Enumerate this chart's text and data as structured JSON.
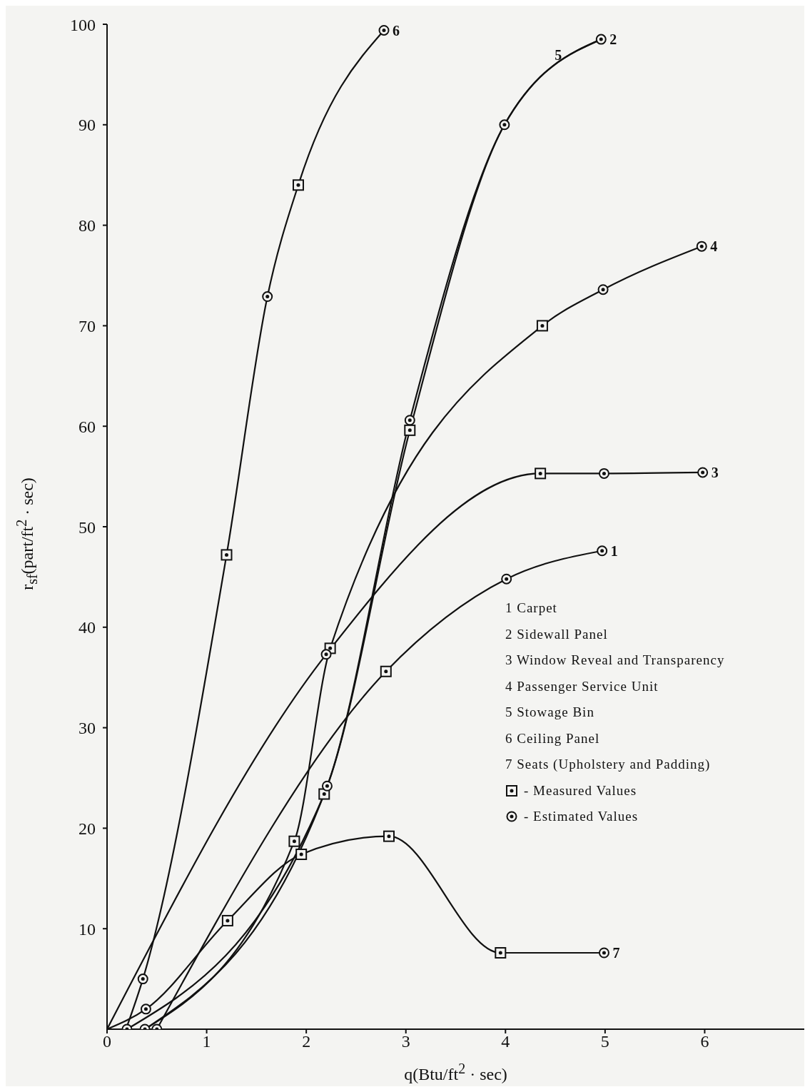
{
  "chart_data": {
    "type": "line",
    "xlabel": "q(Btu/ft$^{2}$ · sec)",
    "ylabel": "r$_{sf}$(part/ft$^{2}$ · sec)",
    "xlim": [
      0,
      7
    ],
    "xticks": [
      0,
      1,
      2,
      3,
      4,
      5,
      6
    ],
    "ylim": [
      0,
      100
    ],
    "yticks": [
      10,
      20,
      30,
      40,
      50,
      60,
      70,
      80,
      90,
      100
    ],
    "grid": false,
    "legend": "right",
    "line_style": "solid",
    "marker": "none",
    "series": [
      {
        "name": "1",
        "color": "#111111",
        "x": [
          0.5,
          2.8,
          4.01,
          4.97
        ],
        "values": [
          0,
          35.6,
          44.8,
          47.6
        ]
      },
      {
        "name": "2",
        "color": "#111111",
        "x": [
          0.2,
          2.18,
          3.04,
          3.99,
          4.96
        ],
        "values": [
          0,
          23.4,
          59.6,
          90,
          98.5
        ]
      },
      {
        "name": "3",
        "color": "#111111",
        "x": [
          0,
          2.2,
          4.35,
          4.99,
          5.98
        ],
        "values": [
          0,
          37.3,
          55.3,
          55.3,
          55.4
        ]
      },
      {
        "name": "4",
        "color": "#111111",
        "x": [
          0.38,
          1.88,
          2.24,
          4.37,
          4.98,
          5.97
        ],
        "values": [
          0,
          18.7,
          37.9,
          70,
          73.6,
          77.9
        ]
      },
      {
        "name": "5",
        "color": "#111111",
        "x": [
          0.38,
          2.21,
          3.04,
          3.99,
          4.96
        ],
        "values": [
          0,
          24.2,
          60.6,
          90,
          98.5
        ]
      },
      {
        "name": "6",
        "color": "#111111",
        "x": [
          0.19,
          0.36,
          1.2,
          1.61,
          1.92,
          2.78
        ],
        "values": [
          0,
          5,
          47.2,
          72.9,
          84,
          99.4
        ]
      },
      {
        "name": "7",
        "color": "#111111",
        "x": [
          0,
          0.39,
          1.21,
          1.95,
          2.83,
          3.95,
          4.99
        ],
        "values": [
          0,
          2,
          10.8,
          17.4,
          19.2,
          7.6,
          7.6
        ]
      },
      {
        "name": "- Measured Values",
        "type": "scatter",
        "marker": "square",
        "color": "#111111",
        "x": [
          2.8,
          2.18,
          3.04,
          4.35,
          1.88,
          2.24,
          4.37,
          1.2,
          1.92,
          1.21,
          1.95,
          2.83,
          3.95
        ],
        "values": [
          35.6,
          23.4,
          59.6,
          55.3,
          18.7,
          37.9,
          70,
          47.2,
          84,
          10.8,
          17.4,
          19.2,
          7.6
        ]
      },
      {
        "name": "- Estimated Values",
        "type": "scatter",
        "marker": "circle",
        "color": "#111111",
        "x": [
          0.5,
          4.01,
          4.97,
          0.2,
          3.99,
          4.96,
          2.2,
          4.99,
          5.98,
          0.38,
          4.98,
          5.97,
          2.21,
          3.04,
          0.36,
          1.61,
          2.78,
          0.39,
          4.99
        ],
        "values": [
          0,
          44.8,
          47.6,
          0,
          90,
          98.5,
          37.3,
          55.3,
          55.4,
          0,
          73.6,
          77.9,
          24.2,
          60.6,
          5,
          72.9,
          99.4,
          2,
          7.6
        ]
      }
    ],
    "annotations": [
      "1 Carpet",
      "2 Sidewall Panel",
      "3 Window Reveal and Transparency",
      "4 Passenger Service Unit",
      "5 Stowage Bin",
      "6 Ceiling Panel",
      "7 Seats (Upholstery and Padding)"
    ]
  }
}
